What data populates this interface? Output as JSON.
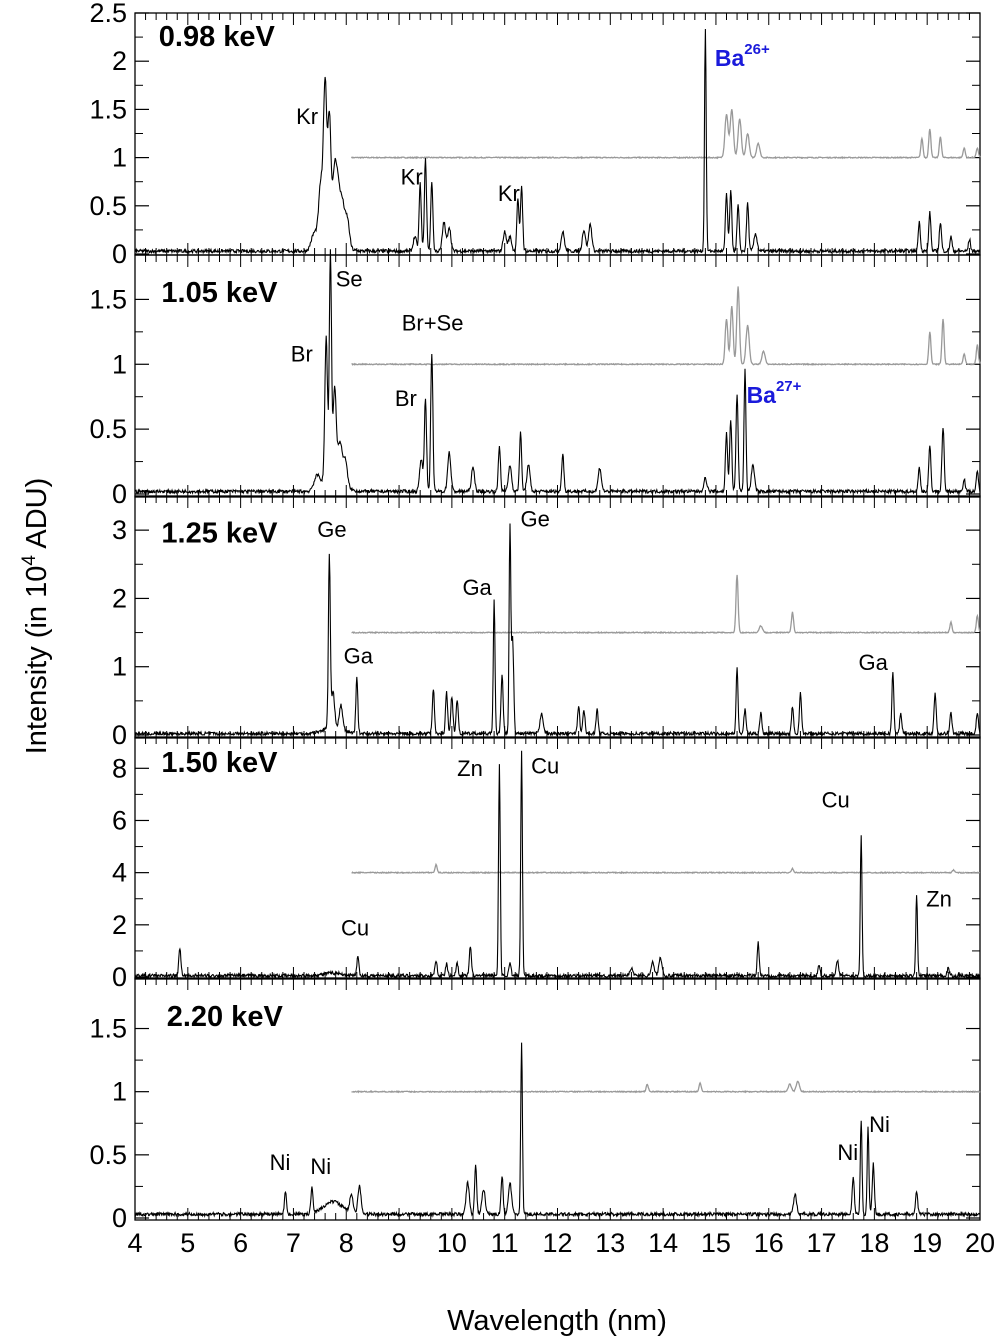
{
  "chart_data": {
    "type": "line",
    "xlabel": "Wavelength (nm)",
    "ylabel_prefix": "Intensity (in 10",
    "ylabel_exponent": "4",
    "ylabel_suffix": " ADU)",
    "xlim": [
      4,
      20
    ],
    "x_ticks": [
      4,
      5,
      6,
      7,
      8,
      9,
      10,
      11,
      12,
      13,
      14,
      15,
      16,
      17,
      18,
      19,
      20
    ],
    "x_tick_labels": [
      "4",
      "5",
      "6",
      "7",
      "8",
      "9",
      "10",
      "11",
      "12",
      "13",
      "14",
      "15",
      "16",
      "17",
      "18",
      "19",
      "20"
    ],
    "grid": false,
    "colors": {
      "spectrum": "#000000",
      "reference": "#999999",
      "ion_label": "#1a1adb"
    },
    "panels": [
      {
        "energy": "0.98 keV",
        "ylim": [
          0,
          2.5
        ],
        "y_ticks": [
          0,
          0.5,
          1,
          1.5,
          2,
          2.5
        ],
        "y_tick_labels": [
          "0",
          "0.5",
          "1",
          "1.5",
          "2",
          "2.5"
        ],
        "baseline": 0.03,
        "ref_offset": 1.0,
        "ref_start": 8.1,
        "peaks": [
          [
            7.6,
            1.62,
            0.03
          ],
          [
            7.68,
            1.3,
            0.03
          ],
          [
            7.52,
            0.65,
            0.04
          ],
          [
            7.78,
            0.72,
            0.04
          ],
          [
            7.85,
            0.48,
            0.04
          ],
          [
            7.93,
            0.4,
            0.04
          ],
          [
            8.02,
            0.3,
            0.04
          ],
          [
            7.4,
            0.18,
            0.06
          ],
          [
            9.4,
            0.7,
            0.02
          ],
          [
            9.5,
            0.95,
            0.02
          ],
          [
            9.62,
            0.72,
            0.02
          ],
          [
            9.85,
            0.3,
            0.03
          ],
          [
            9.95,
            0.25,
            0.03
          ],
          [
            9.3,
            0.15,
            0.03
          ],
          [
            11.25,
            0.55,
            0.02
          ],
          [
            11.32,
            0.68,
            0.02
          ],
          [
            11.0,
            0.2,
            0.03
          ],
          [
            11.1,
            0.15,
            0.03
          ],
          [
            12.1,
            0.2,
            0.03
          ],
          [
            12.5,
            0.22,
            0.03
          ],
          [
            12.62,
            0.28,
            0.03
          ],
          [
            14.8,
            2.3,
            0.016
          ],
          [
            15.2,
            0.6,
            0.02
          ],
          [
            15.28,
            0.62,
            0.02
          ],
          [
            15.42,
            0.48,
            0.02
          ],
          [
            15.6,
            0.5,
            0.02
          ],
          [
            15.75,
            0.18,
            0.03
          ],
          [
            18.85,
            0.3,
            0.02
          ],
          [
            19.05,
            0.4,
            0.02
          ],
          [
            19.25,
            0.3,
            0.02
          ],
          [
            19.45,
            0.15,
            0.02
          ],
          [
            19.8,
            0.12,
            0.02
          ]
        ],
        "ref_peaks": [
          [
            15.2,
            0.45,
            0.03
          ],
          [
            15.3,
            0.5,
            0.03
          ],
          [
            15.45,
            0.4,
            0.03
          ],
          [
            15.6,
            0.25,
            0.03
          ],
          [
            15.8,
            0.15,
            0.03
          ],
          [
            18.9,
            0.2,
            0.02
          ],
          [
            19.05,
            0.3,
            0.02
          ],
          [
            19.25,
            0.22,
            0.02
          ],
          [
            19.7,
            0.1,
            0.02
          ],
          [
            19.95,
            0.1,
            0.02
          ]
        ],
        "annotations": [
          {
            "text": "Kr",
            "x": 7.05,
            "y": 1.35
          },
          {
            "text": "Kr",
            "x": 9.03,
            "y": 0.72
          },
          {
            "text": "Kr",
            "x": 10.87,
            "y": 0.55
          },
          {
            "text": "0.98 keV",
            "x": 4.45,
            "y": 2.16,
            "style": "energy"
          },
          {
            "text": "Ba",
            "sup": "26+",
            "x": 14.98,
            "y": 1.95,
            "style": "ion"
          }
        ]
      },
      {
        "energy": "1.05 keV",
        "ylim": [
          0,
          1.85
        ],
        "y_ticks": [
          0,
          0.5,
          1,
          1.5
        ],
        "y_tick_labels": [
          "0",
          "0.5",
          "1",
          "1.5"
        ],
        "baseline": 0.02,
        "ref_offset": 1.0,
        "ref_start": 8.1,
        "peaks": [
          [
            7.62,
            1.12,
            0.025
          ],
          [
            7.7,
            1.75,
            0.02
          ],
          [
            7.78,
            0.7,
            0.03
          ],
          [
            7.88,
            0.3,
            0.04
          ],
          [
            7.98,
            0.2,
            0.04
          ],
          [
            7.45,
            0.1,
            0.06
          ],
          [
            9.5,
            0.72,
            0.02
          ],
          [
            9.62,
            1.07,
            0.02
          ],
          [
            9.42,
            0.25,
            0.03
          ],
          [
            9.95,
            0.3,
            0.03
          ],
          [
            10.4,
            0.18,
            0.03
          ],
          [
            10.9,
            0.35,
            0.02
          ],
          [
            11.1,
            0.2,
            0.03
          ],
          [
            11.3,
            0.45,
            0.02
          ],
          [
            11.45,
            0.2,
            0.03
          ],
          [
            12.1,
            0.3,
            0.02
          ],
          [
            12.8,
            0.18,
            0.03
          ],
          [
            14.8,
            0.1,
            0.03
          ],
          [
            15.2,
            0.45,
            0.02
          ],
          [
            15.28,
            0.55,
            0.02
          ],
          [
            15.4,
            0.75,
            0.02
          ],
          [
            15.55,
            0.95,
            0.018
          ],
          [
            15.7,
            0.2,
            0.03
          ],
          [
            18.85,
            0.18,
            0.02
          ],
          [
            19.05,
            0.35,
            0.02
          ],
          [
            19.3,
            0.5,
            0.02
          ],
          [
            19.7,
            0.1,
            0.02
          ],
          [
            19.95,
            0.15,
            0.02
          ]
        ],
        "ref_peaks": [
          [
            15.2,
            0.35,
            0.025
          ],
          [
            15.3,
            0.45,
            0.025
          ],
          [
            15.42,
            0.6,
            0.025
          ],
          [
            15.6,
            0.3,
            0.03
          ],
          [
            15.9,
            0.1,
            0.03
          ],
          [
            19.05,
            0.25,
            0.02
          ],
          [
            19.3,
            0.35,
            0.02
          ],
          [
            19.7,
            0.08,
            0.02
          ],
          [
            19.95,
            0.15,
            0.02
          ]
        ],
        "annotations": [
          {
            "text": "Se",
            "x": 7.8,
            "y": 1.6
          },
          {
            "text": "Br",
            "x": 6.95,
            "y": 1.02
          },
          {
            "text": "Br+Se",
            "x": 9.05,
            "y": 1.26
          },
          {
            "text": "Br",
            "x": 8.92,
            "y": 0.68
          },
          {
            "text": "1.05 keV",
            "x": 4.5,
            "y": 1.48,
            "style": "energy"
          },
          {
            "text": "Ba",
            "sup": "27+",
            "x": 15.58,
            "y": 0.7,
            "style": "ion"
          }
        ]
      },
      {
        "energy": "1.25 keV",
        "ylim": [
          0,
          3.5
        ],
        "y_ticks": [
          0,
          1,
          2,
          3
        ],
        "y_tick_labels": [
          "0",
          "1",
          "2",
          "3"
        ],
        "baseline": 0.02,
        "ref_offset": 1.5,
        "ref_start": 8.1,
        "peaks": [
          [
            7.68,
            2.5,
            0.018
          ],
          [
            7.75,
            0.5,
            0.03
          ],
          [
            7.9,
            0.35,
            0.03
          ],
          [
            8.2,
            0.85,
            0.018
          ],
          [
            9.65,
            0.65,
            0.02
          ],
          [
            9.9,
            0.6,
            0.02
          ],
          [
            10.0,
            0.55,
            0.02
          ],
          [
            10.1,
            0.5,
            0.02
          ],
          [
            10.8,
            1.95,
            0.016
          ],
          [
            10.95,
            0.85,
            0.02
          ],
          [
            11.1,
            3.0,
            0.016
          ],
          [
            11.15,
            1.4,
            0.02
          ],
          [
            11.7,
            0.3,
            0.03
          ],
          [
            12.4,
            0.4,
            0.02
          ],
          [
            12.5,
            0.35,
            0.02
          ],
          [
            12.75,
            0.35,
            0.02
          ],
          [
            15.4,
            0.95,
            0.018
          ],
          [
            15.55,
            0.35,
            0.02
          ],
          [
            15.85,
            0.3,
            0.02
          ],
          [
            16.45,
            0.4,
            0.02
          ],
          [
            16.6,
            0.6,
            0.02
          ],
          [
            18.35,
            0.9,
            0.018
          ],
          [
            18.5,
            0.3,
            0.02
          ],
          [
            19.15,
            0.6,
            0.02
          ],
          [
            19.45,
            0.3,
            0.02
          ],
          [
            19.95,
            0.3,
            0.02
          ]
        ],
        "ref_peaks": [
          [
            15.4,
            0.85,
            0.02
          ],
          [
            15.85,
            0.1,
            0.03
          ],
          [
            16.45,
            0.3,
            0.02
          ],
          [
            19.45,
            0.15,
            0.02
          ],
          [
            19.95,
            0.25,
            0.02
          ]
        ],
        "annotations": [
          {
            "text": "Ge",
            "x": 7.45,
            "y": 2.9
          },
          {
            "text": "Ge",
            "x": 11.3,
            "y": 3.05
          },
          {
            "text": "Ga",
            "x": 10.2,
            "y": 2.05
          },
          {
            "text": "Ga",
            "x": 7.95,
            "y": 1.05
          },
          {
            "text": "Ga",
            "x": 17.7,
            "y": 0.95
          },
          {
            "text": "1.25 keV",
            "x": 4.5,
            "y": 2.82,
            "style": "energy"
          }
        ]
      },
      {
        "energy": "1.50 keV",
        "ylim": [
          0,
          9.2
        ],
        "y_ticks": [
          0,
          2,
          4,
          6,
          8
        ],
        "y_tick_labels": [
          "0",
          "2",
          "4",
          "6",
          "8"
        ],
        "baseline": 0.05,
        "ref_offset": 4.0,
        "ref_start": 8.1,
        "peaks": [
          [
            4.85,
            1.05,
            0.02
          ],
          [
            8.22,
            0.7,
            0.02
          ],
          [
            9.7,
            0.6,
            0.02
          ],
          [
            9.9,
            0.45,
            0.02
          ],
          [
            10.1,
            0.5,
            0.02
          ],
          [
            10.35,
            1.1,
            0.02
          ],
          [
            10.9,
            8.1,
            0.016
          ],
          [
            11.1,
            0.5,
            0.02
          ],
          [
            11.32,
            8.6,
            0.016
          ],
          [
            13.4,
            0.3,
            0.03
          ],
          [
            13.8,
            0.5,
            0.03
          ],
          [
            13.95,
            0.7,
            0.03
          ],
          [
            15.8,
            1.3,
            0.018
          ],
          [
            16.95,
            0.4,
            0.02
          ],
          [
            17.3,
            0.6,
            0.02
          ],
          [
            17.75,
            5.4,
            0.016
          ],
          [
            18.8,
            3.1,
            0.016
          ],
          [
            19.4,
            0.3,
            0.02
          ]
        ],
        "ref_peaks": [
          [
            9.7,
            0.3,
            0.02
          ],
          [
            16.45,
            0.15,
            0.02
          ],
          [
            19.5,
            0.1,
            0.02
          ]
        ],
        "annotations": [
          {
            "text": "Zn",
            "x": 10.1,
            "y": 7.7
          },
          {
            "text": "Cu",
            "x": 11.5,
            "y": 7.8
          },
          {
            "text": "Cu",
            "x": 17.0,
            "y": 6.5
          },
          {
            "text": "Zn",
            "x": 18.98,
            "y": 2.7
          },
          {
            "text": "Cu",
            "x": 7.9,
            "y": 1.6
          },
          {
            "text": "1.50 keV",
            "x": 4.5,
            "y": 7.85,
            "style": "energy"
          }
        ]
      },
      {
        "energy": "2.20 keV",
        "ylim": [
          0,
          1.9
        ],
        "y_ticks": [
          0,
          0.5,
          1,
          1.5
        ],
        "y_tick_labels": [
          "0",
          "0.5",
          "1",
          "1.5"
        ],
        "baseline": 0.03,
        "ref_offset": 1.0,
        "ref_start": 8.1,
        "peaks": [
          [
            6.85,
            0.18,
            0.02
          ],
          [
            7.35,
            0.2,
            0.02
          ],
          [
            8.1,
            0.15,
            0.03
          ],
          [
            8.25,
            0.22,
            0.03
          ],
          [
            10.3,
            0.25,
            0.03
          ],
          [
            10.45,
            0.38,
            0.02
          ],
          [
            10.6,
            0.2,
            0.03
          ],
          [
            10.95,
            0.3,
            0.02
          ],
          [
            11.1,
            0.25,
            0.03
          ],
          [
            11.32,
            1.37,
            0.016
          ],
          [
            16.5,
            0.15,
            0.03
          ],
          [
            17.6,
            0.3,
            0.02
          ],
          [
            17.75,
            0.75,
            0.016
          ],
          [
            17.88,
            0.7,
            0.016
          ],
          [
            17.98,
            0.4,
            0.02
          ],
          [
            18.8,
            0.18,
            0.02
          ]
        ],
        "ref_peaks": [
          [
            13.7,
            0.06,
            0.02
          ],
          [
            14.7,
            0.07,
            0.02
          ],
          [
            16.4,
            0.06,
            0.03
          ],
          [
            16.55,
            0.08,
            0.03
          ]
        ],
        "annotations": [
          {
            "text": "Ni",
            "x": 6.55,
            "y": 0.38
          },
          {
            "text": "Ni",
            "x": 7.32,
            "y": 0.35
          },
          {
            "text": "Ni",
            "x": 17.3,
            "y": 0.46
          },
          {
            "text": "Ni",
            "x": 17.9,
            "y": 0.68
          },
          {
            "text": "2.20 keV",
            "x": 4.6,
            "y": 1.52,
            "style": "energy"
          }
        ]
      }
    ]
  }
}
